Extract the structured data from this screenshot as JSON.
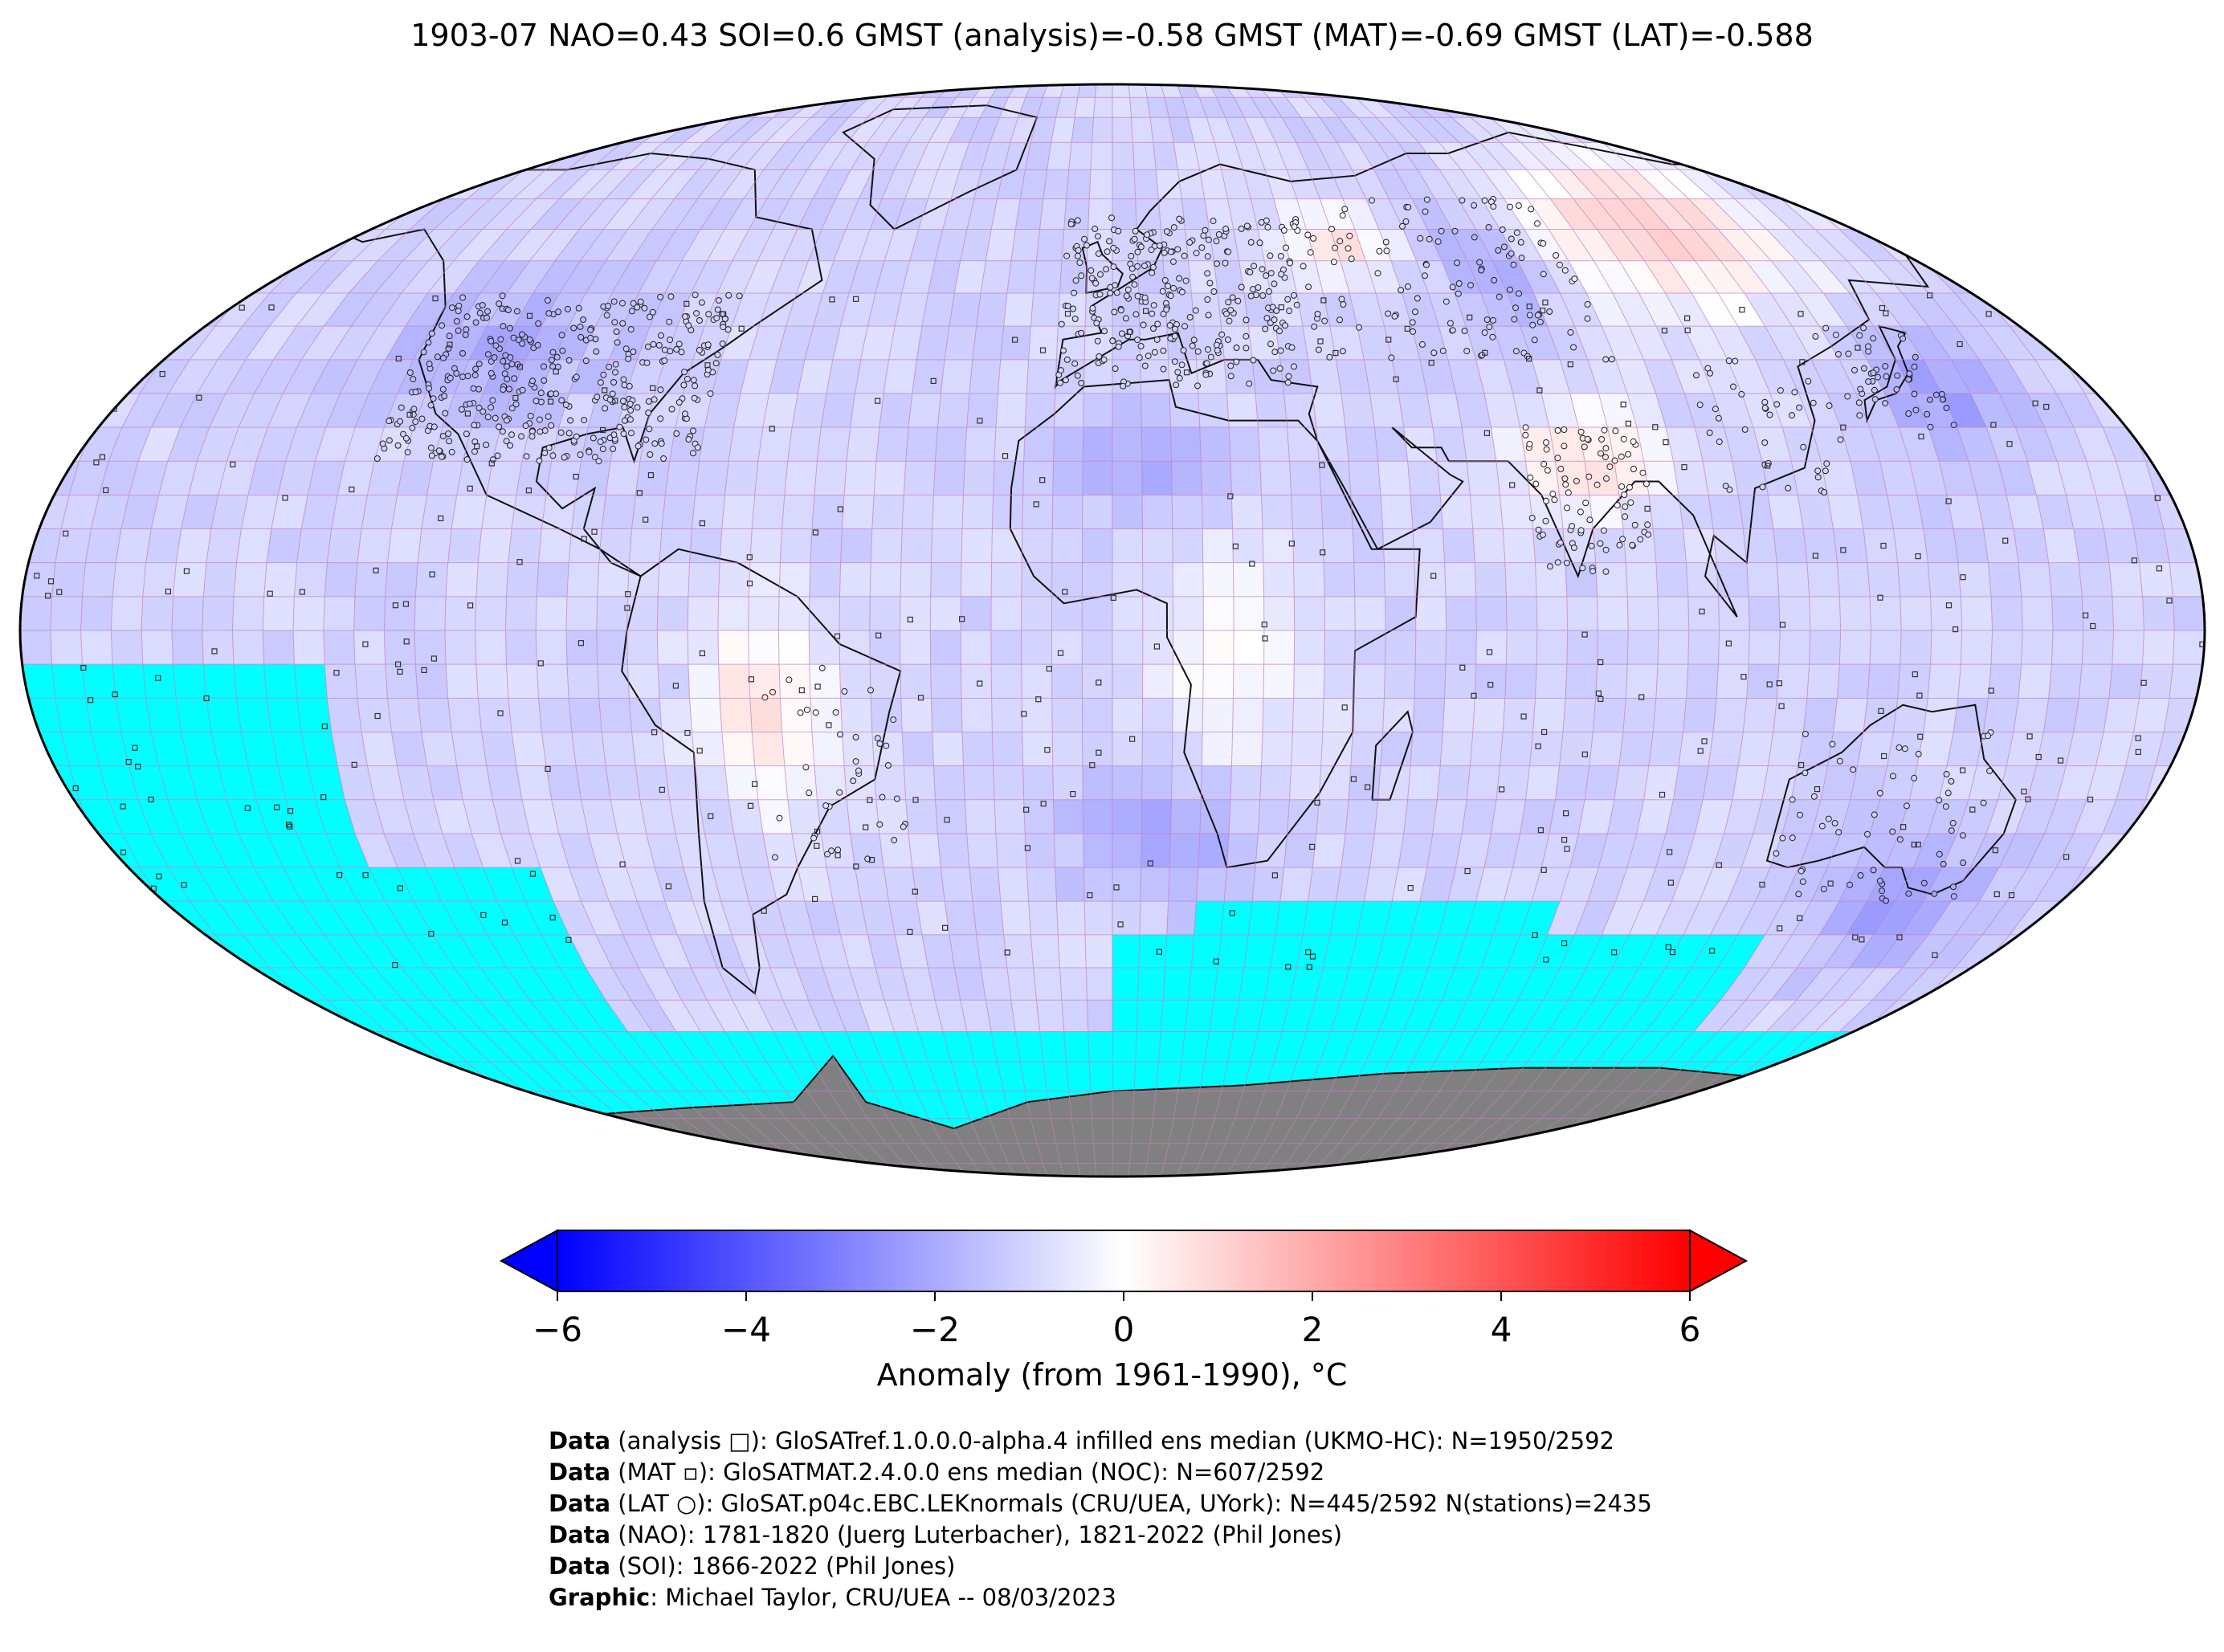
{
  "title": "1903-07 NAO=0.43 SOI=0.6 GMST (analysis)=-0.58 GMST (MAT)=-0.69 GMST (LAT)=-0.588",
  "colorbar": {
    "label": "Anomaly (from 1961-1990), °C",
    "ticks": [
      "−6",
      "−4",
      "−2",
      "0",
      "2",
      "4",
      "6"
    ],
    "tick_values": [
      -6,
      -4,
      -2,
      0,
      2,
      4,
      6
    ],
    "vmin": -6,
    "vmax": 6,
    "colors": {
      "min": "#0000ff",
      "mid": "#ffffff",
      "max": "#ff0000"
    },
    "extend": "both"
  },
  "map": {
    "projection": "Robinson",
    "missing_color": "#00ffff",
    "land_mask_color": "#808080",
    "grid_color": "#c080c0"
  },
  "credits": [
    {
      "bold": "Data",
      "text": " (analysis □): GloSATref.1.0.0.0-alpha.4 infilled ens median (UKMO-HC): N=1950/2592"
    },
    {
      "bold": "Data",
      "text": " (MAT ▫): GloSATMAT.2.4.0.0 ens median (NOC): N=607/2592"
    },
    {
      "bold": "Data",
      "text": " (LAT ○): GloSAT.p04c.EBC.LEKnormals (CRU/UEA, UYork): N=445/2592 N(stations)=2435"
    },
    {
      "bold": "Data",
      "text": " (NAO): 1781-1820 (Juerg Luterbacher), 1821-2022 (Phil Jones)"
    },
    {
      "bold": "Data",
      "text": " (SOI): 1866-2022 (Phil Jones)"
    },
    {
      "bold": "Graphic",
      "text": ": Michael Taylor, CRU/UEA -- 08/03/2023"
    }
  ]
}
